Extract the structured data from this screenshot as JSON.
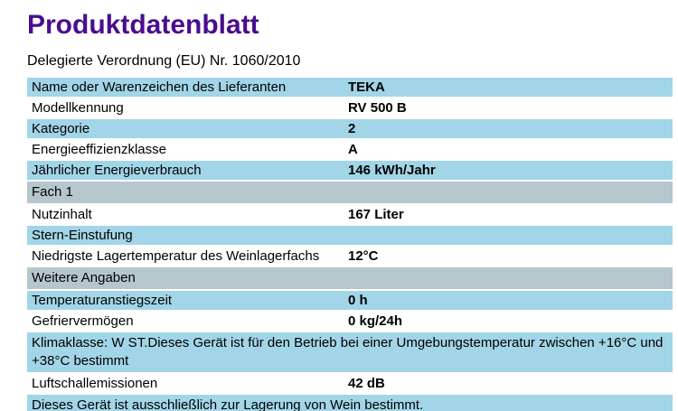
{
  "page": {
    "title": "Produktdatenblatt",
    "subtitle": "Delegierte Verordnung (EU) Nr. 1060/2010"
  },
  "colors": {
    "title_color": "#4a0d8f",
    "row_blue": "#a2d5e7",
    "row_gray": "#b5c6cd"
  },
  "table": {
    "rows": [
      {
        "label": "Name oder Warenzeichen des Lieferanten",
        "value": "TEKA"
      },
      {
        "label": "Modellkennung",
        "value": "RV 500 B"
      },
      {
        "label": "Kategorie",
        "value": "2"
      },
      {
        "label": "Energieeffizienzklasse",
        "value": "A"
      },
      {
        "label": "Jährlicher Energieverbrauch",
        "value": "146 kWh/Jahr"
      },
      {
        "label": "Fach 1",
        "value": ""
      },
      {
        "label": "Nutzinhalt",
        "value": "167 Liter"
      },
      {
        "label": "Stern-Einstufung",
        "value": ""
      },
      {
        "label": "Niedrigste Lagertemperatur des Weinlagerfachs",
        "value": "12°C"
      },
      {
        "label": "Weitere Angaben",
        "value": ""
      },
      {
        "label": "Temperaturanstiegszeit",
        "value": "0 h"
      },
      {
        "label": "Gefriervermögen",
        "value": "0 kg/24h"
      },
      {
        "label": "Klimaklasse: W ST.Dieses Gerät ist für den Betrieb bei einer Umgebungstemperatur zwischen +16°C und +38°C bestimmt",
        "value": ""
      },
      {
        "label": "Luftschallemissionen",
        "value": "42 dB"
      },
      {
        "label": "Dieses Gerät ist ausschließlich zur Lagerung von Wein bestimmt.",
        "value": ""
      }
    ]
  }
}
